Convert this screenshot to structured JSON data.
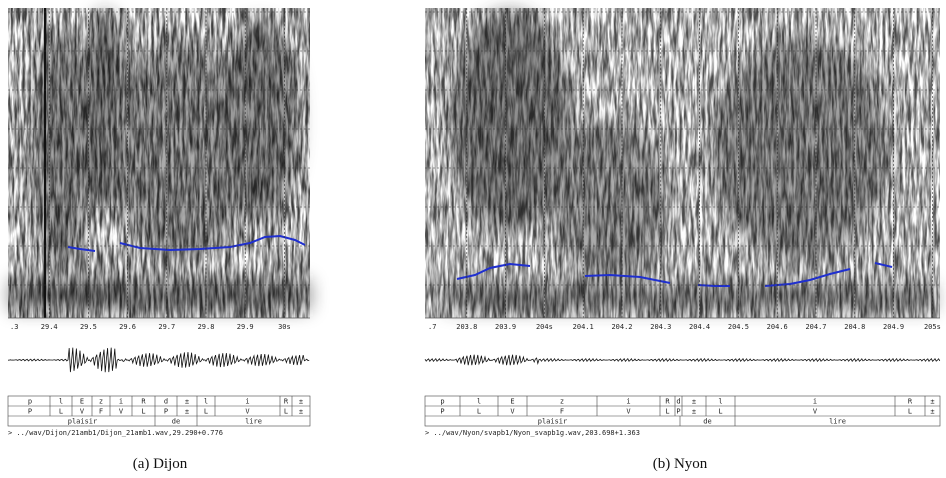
{
  "panels": [
    {
      "caption": "(a) Dijon",
      "time_ticks": [
        ".3",
        "29.4",
        "29.5",
        "29.6",
        "29.7",
        "29.8",
        "29.9",
        "30s"
      ],
      "tiers": [
        [
          "p",
          "l",
          "E",
          "z",
          "i",
          "R",
          "d",
          "±",
          "l",
          "i",
          "R",
          "±"
        ],
        [
          "P",
          "L",
          "V",
          "F",
          "V",
          "L",
          "P",
          "±",
          "L",
          "V",
          "L",
          "±"
        ],
        [
          "plaisir",
          "de",
          "lire"
        ]
      ],
      "file": "> ../wav/Dijon/21amb1/Dijon_21amb1.wav,29.290+0.776"
    },
    {
      "caption": "(b) Nyon",
      "time_ticks": [
        ".7",
        "203.8",
        "203.9",
        "204s",
        "204.1",
        "204.2",
        "204.3",
        "204.4",
        "204.5",
        "204.6",
        "204.7",
        "204.8",
        "204.9",
        "205s"
      ],
      "tiers": [
        [
          "p",
          "l",
          "E",
          "z",
          "i",
          "R",
          "d",
          "±",
          "l",
          "i",
          "R",
          "±"
        ],
        [
          "P",
          "L",
          "V",
          "F",
          "V",
          "L",
          "P",
          "±",
          "L",
          "V",
          "L",
          "±"
        ],
        [
          "plaisir",
          "de",
          "lire"
        ]
      ],
      "file": "> ../wav/Nyon/svapb1/Nyon_svapb1g.wav,203.698+1.363"
    }
  ]
}
